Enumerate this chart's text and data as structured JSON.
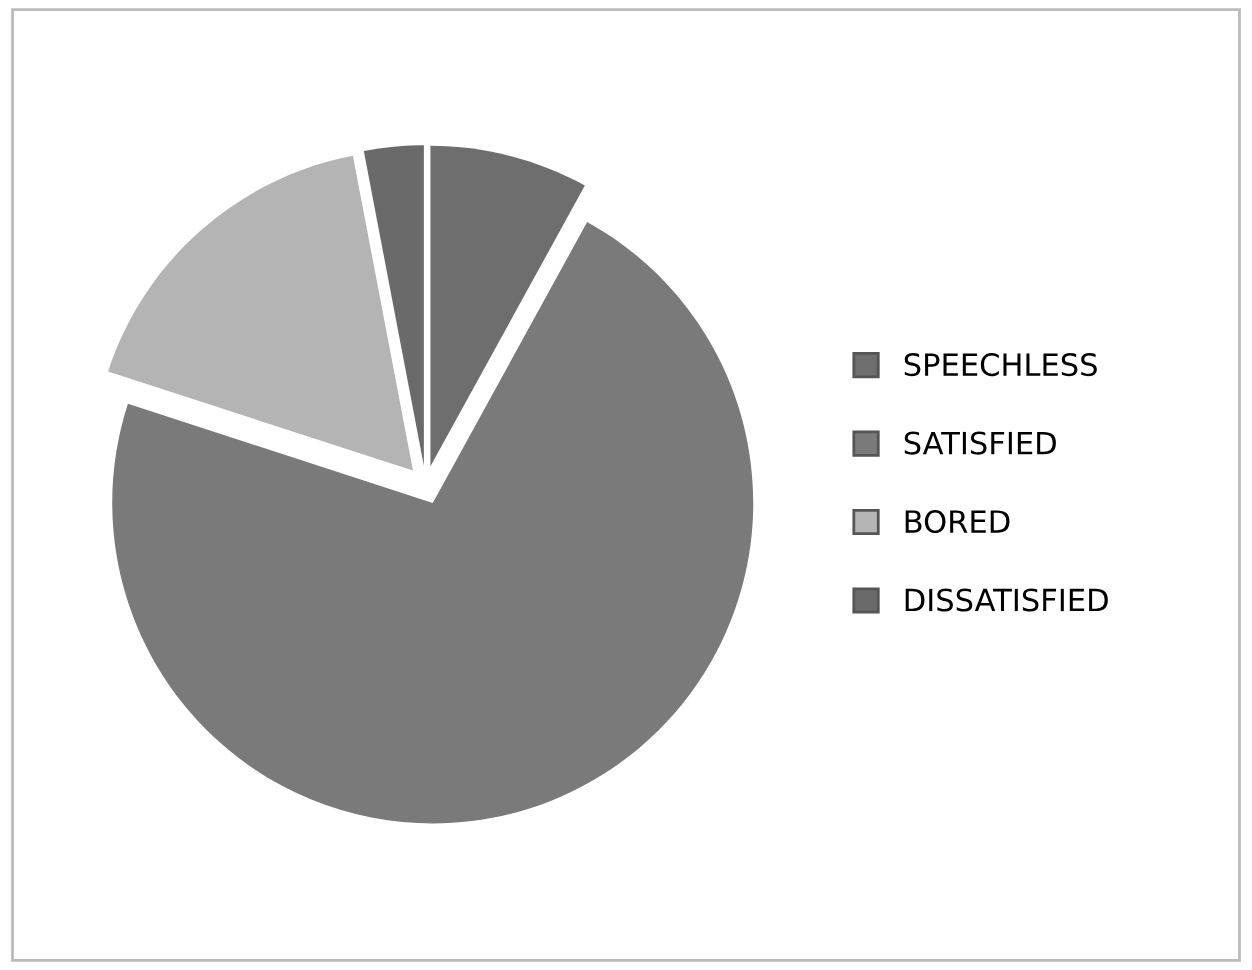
{
  "chart_data": {
    "type": "pie",
    "categories": [
      "SPEECHLESS",
      "SATISFIED",
      "BORED",
      "DISSATISFIED"
    ],
    "values": [
      8,
      72,
      17,
      3
    ],
    "colors": [
      "#6e6e6e",
      "#7a7a7a",
      "#b4b4b4",
      "#6a6a6a"
    ],
    "legend": "right"
  }
}
